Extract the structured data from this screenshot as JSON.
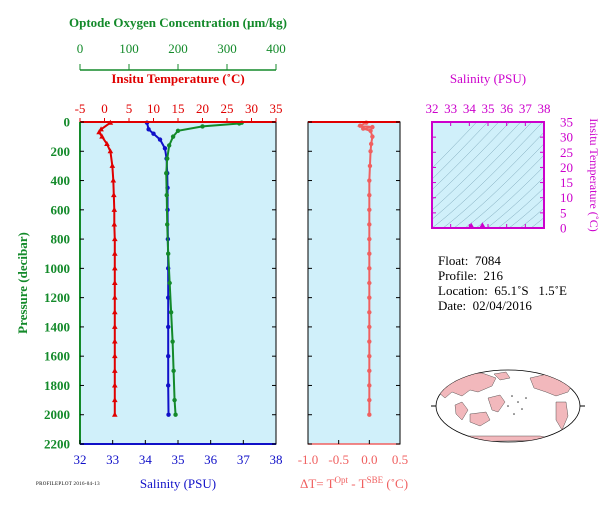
{
  "chart_data": [
    {
      "type": "line",
      "panel": "main-profile",
      "x_axes": {
        "bottom": {
          "label": "Salinity (PSU)",
          "range": [
            32,
            38
          ],
          "ticks": [
            32,
            33,
            34,
            35,
            36,
            37,
            38
          ],
          "color": "#1010c8"
        },
        "top_inner": {
          "label": "Insitu Temperature (˚C)",
          "range": [
            -5,
            35
          ],
          "ticks": [
            -5,
            0,
            5,
            10,
            15,
            20,
            25,
            30,
            35
          ],
          "color": "#e00000"
        },
        "top_outer": {
          "label": "Optode Oxygen Concentration (µm/kg)",
          "range": [
            0,
            400
          ],
          "ticks": [
            0,
            100,
            200,
            300,
            400
          ],
          "color": "#138a2a"
        }
      },
      "y_axis": {
        "label": "Pressure (decibar)",
        "range": [
          0,
          2200
        ],
        "inverted": true,
        "ticks": [
          0,
          200,
          400,
          600,
          800,
          1000,
          1200,
          1400,
          1600,
          1800,
          2000,
          2200
        ],
        "color": "#138a2a"
      },
      "series": [
        {
          "axis": "top_inner",
          "color": "#e00000",
          "marker": "triangle",
          "points": [
            [
              1.2,
              5
            ],
            [
              -0.7,
              50
            ],
            [
              -1.1,
              70
            ],
            [
              -0.5,
              100
            ],
            [
              0.5,
              150
            ],
            [
              1.2,
              200
            ],
            [
              1.6,
              300
            ],
            [
              1.8,
              400
            ],
            [
              1.9,
              500
            ],
            [
              2.0,
              600
            ],
            [
              2.0,
              700
            ],
            [
              2.1,
              800
            ],
            [
              2.1,
              900
            ],
            [
              2.1,
              1000
            ],
            [
              2.1,
              1100
            ],
            [
              2.1,
              1200
            ],
            [
              2.1,
              1300
            ],
            [
              2.1,
              1400
            ],
            [
              2.1,
              1500
            ],
            [
              2.1,
              1600
            ],
            [
              2.1,
              1700
            ],
            [
              2.1,
              1800
            ],
            [
              2.1,
              1900
            ],
            [
              2.1,
              2000
            ]
          ]
        },
        {
          "axis": "bottom",
          "color": "#1010c8",
          "marker": "circle",
          "points": [
            [
              34.05,
              5
            ],
            [
              34.1,
              50
            ],
            [
              34.25,
              80
            ],
            [
              34.45,
              120
            ],
            [
              34.6,
              180
            ],
            [
              34.65,
              250
            ],
            [
              34.67,
              350
            ],
            [
              34.68,
              450
            ],
            [
              34.68,
              600
            ],
            [
              34.69,
              800
            ],
            [
              34.7,
              1000
            ],
            [
              34.7,
              1200
            ],
            [
              34.7,
              1400
            ],
            [
              34.7,
              1600
            ],
            [
              34.7,
              1800
            ],
            [
              34.71,
              2000
            ]
          ]
        },
        {
          "axis": "top_outer",
          "color": "#138a2a",
          "marker": "circle",
          "points": [
            [
              330,
              5
            ],
            [
              325,
              10
            ],
            [
              250,
              30
            ],
            [
              200,
              60
            ],
            [
              190,
              100
            ],
            [
              182,
              160
            ],
            [
              178,
              250
            ],
            [
              176,
              350
            ],
            [
              177,
              500
            ],
            [
              178,
              700
            ],
            [
              180,
              900
            ],
            [
              183,
              1100
            ],
            [
              186,
              1300
            ],
            [
              189,
              1500
            ],
            [
              191,
              1700
            ],
            [
              193,
              1900
            ],
            [
              195,
              2000
            ]
          ]
        }
      ]
    },
    {
      "type": "line",
      "panel": "delta-t",
      "x_axis": {
        "label_parts": [
          "ΔT= T",
          "Opt",
          " - T",
          "SBE",
          " (˚C)"
        ],
        "range": [
          -1.0,
          0.5
        ],
        "ticks": [
          "-1.0",
          "-0.5",
          "0.0",
          "0.5"
        ],
        "tick_values": [
          -1.0,
          -0.5,
          0.0,
          0.5
        ],
        "color": "#f06060"
      },
      "y_axis": {
        "range": [
          0,
          2200
        ],
        "inverted": true
      },
      "series": [
        {
          "color": "#f06060",
          "marker": "circle",
          "points": [
            [
              -0.05,
              5
            ],
            [
              -0.15,
              25
            ],
            [
              0.05,
              35
            ],
            [
              -0.1,
              45
            ],
            [
              0.02,
              60
            ],
            [
              0.05,
              100
            ],
            [
              0.03,
              150
            ],
            [
              0.02,
              200
            ],
            [
              0.01,
              300
            ],
            [
              0.0,
              400
            ],
            [
              0.0,
              500
            ],
            [
              0.0,
              600
            ],
            [
              0.0,
              700
            ],
            [
              0.0,
              800
            ],
            [
              0.0,
              900
            ],
            [
              0.0,
              1000
            ],
            [
              0.0,
              1100
            ],
            [
              0.0,
              1200
            ],
            [
              0.0,
              1300
            ],
            [
              0.0,
              1400
            ],
            [
              0.0,
              1500
            ],
            [
              0.0,
              1600
            ],
            [
              0.0,
              1700
            ],
            [
              0.0,
              1800
            ],
            [
              0.0,
              1900
            ],
            [
              0.0,
              2000
            ]
          ]
        }
      ]
    },
    {
      "type": "scatter",
      "panel": "ts-diagram",
      "title": "Salinity (PSU)",
      "x_axis": {
        "range": [
          32,
          38
        ],
        "ticks": [
          32,
          33,
          34,
          35,
          36,
          37,
          38
        ],
        "color": "#cc00cc"
      },
      "y_axis": {
        "label": "Insitu Temperature (˚C)",
        "range": [
          0,
          35
        ],
        "ticks": [
          0,
          5,
          10,
          15,
          20,
          25,
          30,
          35
        ],
        "color": "#cc00cc"
      },
      "series": [
        {
          "color": "#cc00cc",
          "marker": "triangle",
          "points": [
            [
              34.1,
              0.8
            ],
            [
              34.7,
              0.9
            ]
          ]
        }
      ]
    }
  ],
  "info": {
    "float": "Float:  7084",
    "profile": "Profile:  216",
    "location": "Location:  65.1˚S   1.5˚E",
    "date": "Date:  02/04/2016"
  },
  "footer_tiny": "PROFILEPLOT 2016-04-13",
  "map": {
    "type": "world-map",
    "marker_location": [
      -65.1,
      1.5
    ]
  }
}
